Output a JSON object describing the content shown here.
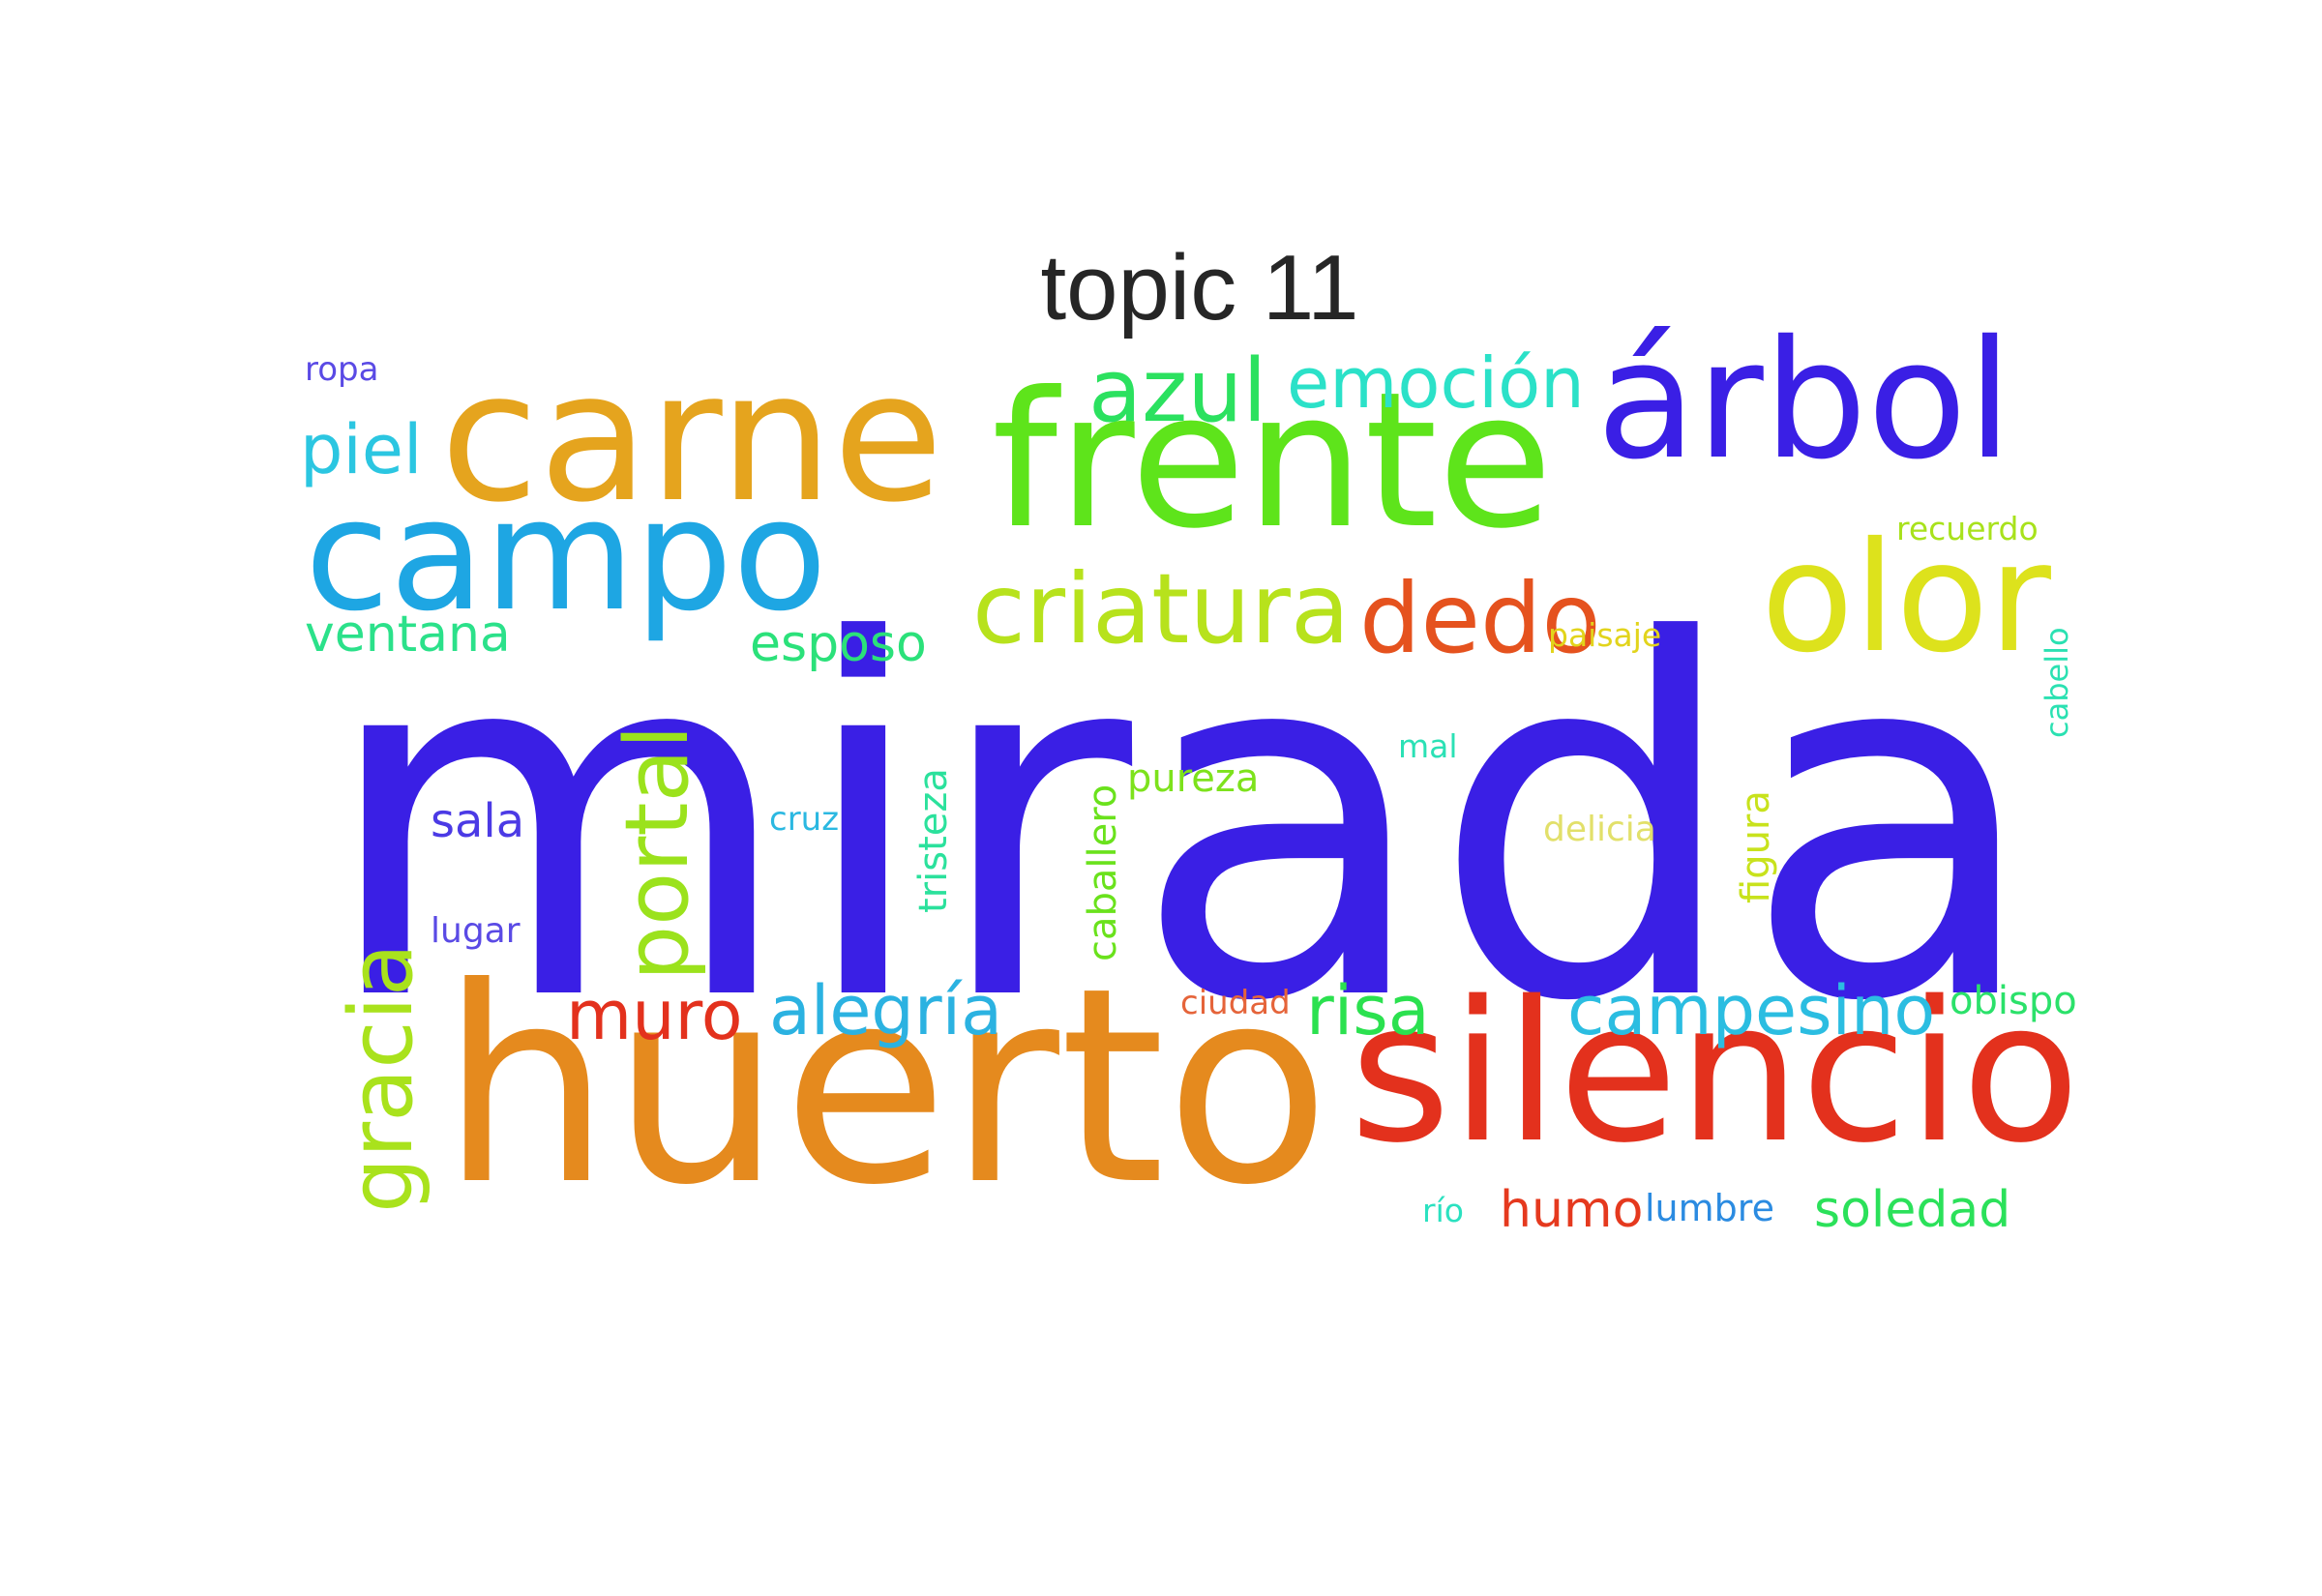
{
  "title": "topic 11",
  "words": [
    {
      "text": "mirada",
      "color": "#3a1fe5",
      "rotated": false
    },
    {
      "text": "huerto",
      "color": "#e58a1e",
      "rotated": false
    },
    {
      "text": "silencio",
      "color": "#e3311d",
      "rotated": false
    },
    {
      "text": "frente",
      "color": "#5ee41b",
      "rotated": false
    },
    {
      "text": "carne",
      "color": "#e5a41e",
      "rotated": false
    },
    {
      "text": "campo",
      "color": "#1ea6e3",
      "rotated": false
    },
    {
      "text": "árbol",
      "color": "#3a1fe5",
      "rotated": false
    },
    {
      "text": "olor",
      "color": "#dde21c",
      "rotated": false
    },
    {
      "text": "criatura",
      "color": "#b7e21c",
      "rotated": false
    },
    {
      "text": "dedo",
      "color": "#e5521e",
      "rotated": false
    },
    {
      "text": "azul",
      "color": "#2be15f",
      "rotated": false
    },
    {
      "text": "emoción",
      "color": "#2be1c8",
      "rotated": false
    },
    {
      "text": "piel",
      "color": "#2bc6e1",
      "rotated": false
    },
    {
      "text": "portal",
      "color": "#9be21c",
      "rotated": true
    },
    {
      "text": "gracia",
      "color": "#a9e21c",
      "rotated": true
    },
    {
      "text": "alegría",
      "color": "#2bb2e1",
      "rotated": false
    },
    {
      "text": "campesino",
      "color": "#2bbde1",
      "rotated": false
    },
    {
      "text": "muro",
      "color": "#e3311d",
      "rotated": false
    },
    {
      "text": "risa",
      "color": "#2be14f",
      "rotated": false
    },
    {
      "text": "ventana",
      "color": "#2be18a",
      "rotated": false
    },
    {
      "text": "esposo",
      "color": "#2be17a",
      "rotated": false
    },
    {
      "text": "soledad",
      "color": "#2be15a",
      "rotated": false
    },
    {
      "text": "humo",
      "color": "#e5391e",
      "rotated": false
    },
    {
      "text": "sala",
      "color": "#4b3ae5",
      "rotated": false
    },
    {
      "text": "pureza",
      "color": "#7de21c",
      "rotated": false
    },
    {
      "text": "obispo",
      "color": "#2be16a",
      "rotated": false
    },
    {
      "text": "tristeza",
      "color": "#2be19c",
      "rotated": true
    },
    {
      "text": "caballero",
      "color": "#6ae21c",
      "rotated": true
    },
    {
      "text": "figura",
      "color": "#c8e21c",
      "rotated": true
    },
    {
      "text": "lumbre",
      "color": "#2b8be1",
      "rotated": false
    },
    {
      "text": "delicia",
      "color": "#e2e06a",
      "rotated": false
    },
    {
      "text": "lugar",
      "color": "#5a4ae5",
      "rotated": false
    },
    {
      "text": "cruz",
      "color": "#2bb8e1",
      "rotated": false
    },
    {
      "text": "ciudad",
      "color": "#e5643a",
      "rotated": false
    },
    {
      "text": "recuerdo",
      "color": "#a8e21c",
      "rotated": false
    },
    {
      "text": "paisaje",
      "color": "#e2d41c",
      "rotated": false
    },
    {
      "text": "cabello",
      "color": "#2be1b2",
      "rotated": true
    },
    {
      "text": "mal",
      "color": "#2be1b5",
      "rotated": false
    },
    {
      "text": "ropa",
      "color": "#5a4ae5",
      "rotated": false
    },
    {
      "text": "río",
      "color": "#2be1c0",
      "rotated": false
    }
  ]
}
